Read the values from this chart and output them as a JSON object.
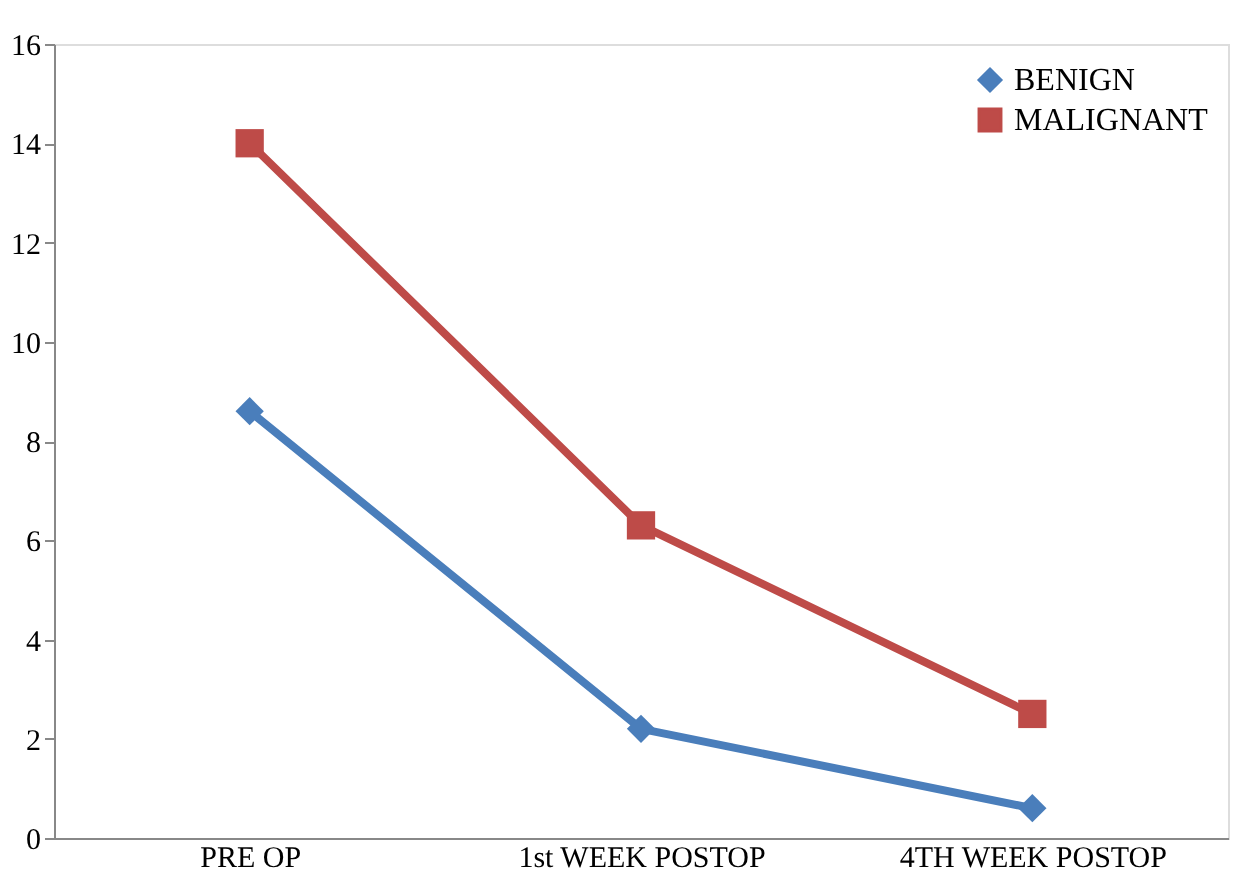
{
  "chart_data": {
    "type": "line",
    "categories": [
      "PRE OP",
      "1st WEEK POSTOP",
      "4TH WEEK POSTOP"
    ],
    "series": [
      {
        "name": "BENIGN",
        "color": "#4a7ebb",
        "marker": "diamond",
        "values": [
          8.6,
          2.2,
          0.6
        ]
      },
      {
        "name": "MALIGNANT",
        "color": "#be4b48",
        "marker": "square",
        "values": [
          14,
          6.3,
          2.5
        ]
      }
    ],
    "ylim": [
      0,
      16
    ],
    "yticks": [
      0,
      2,
      4,
      6,
      8,
      10,
      12,
      14,
      16
    ],
    "grid": false,
    "legend": "top right",
    "line_style": "solid"
  }
}
